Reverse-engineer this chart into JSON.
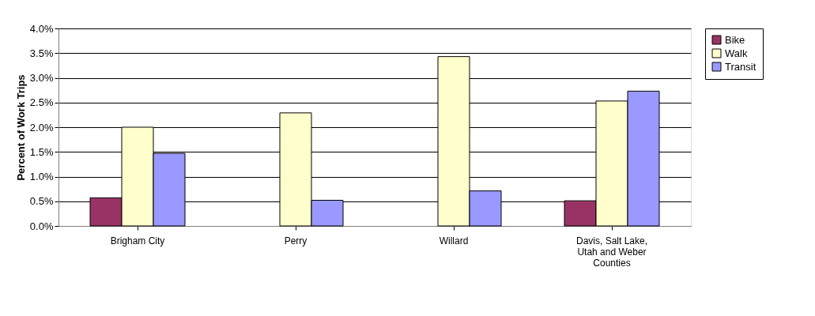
{
  "chart_data": {
    "type": "bar",
    "ylabel": "Percent of Work Trips",
    "categories": [
      "Brigham City",
      "Perry",
      "Willard",
      "Davis, Salt Lake, Utah and Weber Counties"
    ],
    "series": [
      {
        "name": "Bike",
        "color": "#993366",
        "values": [
          0.57,
          null,
          null,
          0.51
        ]
      },
      {
        "name": "Walk",
        "color": "#ffffcc",
        "values": [
          2.0,
          2.29,
          3.43,
          2.53
        ]
      },
      {
        "name": "Transit",
        "color": "#9999ff",
        "values": [
          1.47,
          0.52,
          0.71,
          2.73
        ]
      }
    ],
    "ylim": [
      0,
      4
    ],
    "yticks": [
      {
        "value": 0,
        "label": "0.0%"
      },
      {
        "value": 0.5,
        "label": "0.5%"
      },
      {
        "value": 1,
        "label": "1.0%"
      },
      {
        "value": 1.5,
        "label": "1.5%"
      },
      {
        "value": 2,
        "label": "2.0%"
      },
      {
        "value": 2.5,
        "label": "2.5%"
      },
      {
        "value": 3,
        "label": "3.0%"
      },
      {
        "value": 3.5,
        "label": "3.5%"
      },
      {
        "value": 4,
        "label": "4.0%"
      }
    ],
    "grid": "y",
    "legend": "right"
  }
}
